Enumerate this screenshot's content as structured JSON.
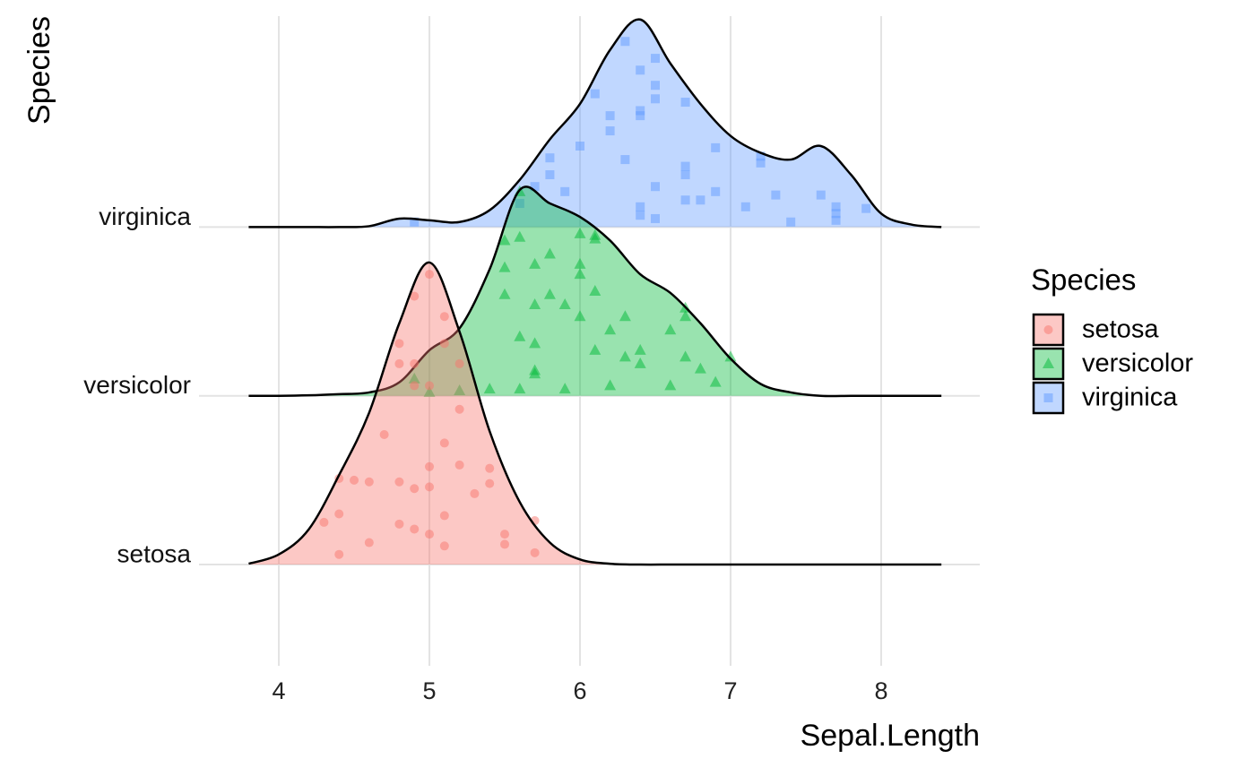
{
  "chart_data": {
    "type": "ridgeline",
    "x_label": "Sepal.Length",
    "y_label": "Species",
    "xlim": [
      3.47,
      8.655
    ],
    "xticks": [
      4,
      5,
      6,
      7,
      8
    ],
    "ylim": [
      -0.6,
      3.25
    ],
    "grid": true,
    "legend_title": "Species",
    "legend_position": "right",
    "density_x": [
      3.8,
      4.0,
      4.2,
      4.4,
      4.6,
      4.8,
      5.0,
      5.2,
      5.4,
      5.6,
      5.8,
      6.0,
      6.2,
      6.4,
      6.6,
      6.8,
      7.0,
      7.2,
      7.4,
      7.6,
      7.8,
      8.0,
      8.2,
      8.4
    ],
    "series": [
      {
        "name": "setosa",
        "color": "#F8766D",
        "shape": "circle",
        "density": [
          0.005,
          0.06,
          0.21,
          0.53,
          0.9,
          1.43,
          1.79,
          1.38,
          0.79,
          0.37,
          0.13,
          0.03,
          0.005,
          0,
          0,
          0,
          0,
          0,
          0,
          0,
          0,
          0,
          0,
          0
        ],
        "points": {
          "x": [
            5.0,
            4.9,
            5.1,
            4.8,
            5.1,
            4.8,
            5.2,
            4.9,
            5.0,
            4.9,
            5.2,
            4.7,
            5.1,
            4.4,
            4.5,
            4.6,
            4.8,
            4.9,
            5.0,
            5.0,
            5.2,
            5.4,
            5.4,
            5.3,
            4.4,
            4.3,
            5.1,
            5.7,
            4.9,
            5.0,
            4.6,
            5.1,
            5.5,
            5.5,
            4.4,
            5.7,
            4.8
          ],
          "height": [
            1.72,
            1.59,
            1.47,
            1.31,
            1.31,
            1.19,
            1.19,
            1.06,
            1.06,
            1.19,
            0.92,
            0.77,
            0.72,
            0.51,
            0.5,
            0.49,
            0.49,
            0.45,
            0.58,
            0.46,
            0.59,
            0.57,
            0.48,
            0.42,
            0.3,
            0.25,
            0.29,
            0.26,
            0.21,
            0.18,
            0.13,
            0.11,
            0.18,
            0.12,
            0.06,
            0.07,
            0.24
          ]
        }
      },
      {
        "name": "versicolor",
        "color": "#00BA38",
        "shape": "triangle",
        "density": [
          0,
          0,
          0.003,
          0.01,
          0.02,
          0.08,
          0.27,
          0.4,
          0.75,
          1.22,
          1.14,
          1.06,
          0.92,
          0.72,
          0.61,
          0.43,
          0.22,
          0.07,
          0.02,
          0,
          0,
          0,
          0,
          0
        ],
        "points": {
          "x": [
            5.6,
            5.5,
            5.6,
            6.0,
            6.1,
            6.1,
            5.8,
            5.7,
            5.5,
            6.0,
            6.0,
            6.1,
            5.5,
            5.8,
            5.7,
            5.9,
            6.3,
            6.0,
            6.7,
            6.7,
            6.2,
            6.6,
            5.6,
            5.7,
            6.1,
            6.4,
            7.0,
            6.3,
            6.7,
            5.7,
            6.4,
            6.8,
            4.9,
            5.2,
            5.4,
            5.6,
            5.9,
            6.2,
            6.6,
            6.9,
            5.0,
            5.7
          ],
          "height": [
            1.21,
            0.92,
            0.94,
            0.96,
            0.95,
            0.93,
            0.84,
            0.78,
            0.76,
            0.78,
            0.72,
            0.62,
            0.6,
            0.6,
            0.54,
            0.54,
            0.47,
            0.47,
            0.52,
            0.47,
            0.39,
            0.39,
            0.35,
            0.31,
            0.27,
            0.27,
            0.23,
            0.23,
            0.23,
            0.15,
            0.19,
            0.16,
            0.1,
            0.03,
            0.04,
            0.04,
            0.04,
            0.06,
            0.06,
            0.08,
            0.02,
            0.13
          ]
        }
      },
      {
        "name": "virginica",
        "color": "#619CFF",
        "shape": "square",
        "density": [
          0,
          0,
          0,
          0,
          0.005,
          0.05,
          0.04,
          0.03,
          0.1,
          0.28,
          0.52,
          0.73,
          1.05,
          1.23,
          0.97,
          0.73,
          0.54,
          0.44,
          0.4,
          0.48,
          0.31,
          0.08,
          0.015,
          0
        ],
        "points": {
          "x": [
            6.3,
            6.5,
            6.4,
            6.1,
            6.5,
            6.5,
            6.7,
            6.4,
            6.2,
            6.4,
            6.2,
            6.0,
            6.9,
            5.8,
            6.3,
            7.2,
            7.2,
            6.7,
            6.7,
            5.8,
            5.7,
            6.5,
            5.9,
            6.9,
            6.8,
            7.3,
            7.6,
            6.7,
            7.1,
            6.4,
            7.7,
            7.9,
            5.6,
            7.7,
            6.4,
            6.5,
            7.4,
            7.7,
            4.9
          ],
          "height": [
            1.1,
            1.0,
            0.93,
            0.79,
            0.84,
            0.76,
            0.74,
            0.69,
            0.66,
            0.66,
            0.57,
            0.48,
            0.47,
            0.41,
            0.4,
            0.42,
            0.38,
            0.36,
            0.31,
            0.31,
            0.24,
            0.24,
            0.21,
            0.21,
            0.16,
            0.19,
            0.19,
            0.16,
            0.12,
            0.12,
            0.12,
            0.11,
            0.14,
            0.08,
            0.07,
            0.05,
            0.03,
            0.04,
            0.03
          ]
        }
      }
    ]
  }
}
